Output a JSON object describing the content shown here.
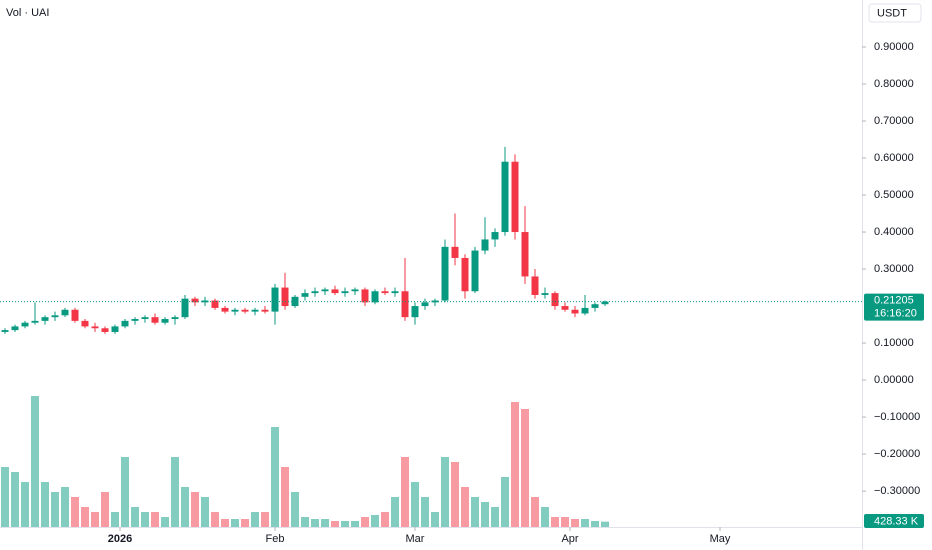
{
  "chart_data": {
    "type": "candlestick",
    "title": "Vol · UAI",
    "currency": "USDT",
    "countdown": "16:16:20",
    "last_volume_label": "428.33 K",
    "up_color": "#089981",
    "down_color": "#f23645",
    "xlim": [
      0,
      172.4
    ],
    "xticks": [
      {
        "value": 24,
        "label": "2026"
      },
      {
        "value": 55,
        "label": "Feb"
      },
      {
        "value": 83,
        "label": "Mar"
      },
      {
        "value": 114,
        "label": "Apr"
      },
      {
        "value": 144,
        "label": "May"
      }
    ],
    "ylim": [
      -0.397,
      1.027
    ],
    "yticks": [
      {
        "value": 0.9,
        "label": "0.90000"
      },
      {
        "value": 0.8,
        "label": "0.80000"
      },
      {
        "value": 0.7,
        "label": "0.70000"
      },
      {
        "value": 0.6,
        "label": "0.60000"
      },
      {
        "value": 0.5,
        "label": "0.50000"
      },
      {
        "value": 0.4,
        "label": "0.40000"
      },
      {
        "value": 0.3,
        "label": "0.30000"
      },
      {
        "value": 0.1,
        "label": "0.10000"
      },
      {
        "value": 0,
        "label": "0.00000"
      },
      {
        "value": -0.1,
        "label": "−0.10000"
      },
      {
        "value": -0.2,
        "label": "−0.20000"
      },
      {
        "value": -0.3,
        "label": "−0.30000"
      }
    ],
    "volume_ylim": [
      0,
      12000
    ],
    "x": [
      1,
      3,
      5,
      7,
      9,
      11,
      13,
      15,
      17,
      19,
      21,
      23,
      25,
      27,
      29,
      31,
      33,
      35,
      37,
      39,
      41,
      43,
      45,
      47,
      49,
      51,
      53,
      55,
      57,
      59,
      61,
      63,
      65,
      67,
      69,
      71,
      73,
      75,
      77,
      79,
      81,
      83,
      85,
      87,
      89,
      91,
      93,
      95,
      97,
      99,
      101,
      103,
      105,
      107,
      109,
      111,
      113,
      115,
      117,
      119,
      121
    ],
    "candles": [
      [
        0.13,
        0.14,
        0.125,
        0.135
      ],
      [
        0.135,
        0.15,
        0.13,
        0.145
      ],
      [
        0.145,
        0.16,
        0.14,
        0.155
      ],
      [
        0.155,
        0.21,
        0.15,
        0.16
      ],
      [
        0.16,
        0.175,
        0.15,
        0.17
      ],
      [
        0.17,
        0.185,
        0.16,
        0.175
      ],
      [
        0.175,
        0.195,
        0.17,
        0.19
      ],
      [
        0.19,
        0.195,
        0.155,
        0.16
      ],
      [
        0.16,
        0.165,
        0.14,
        0.145
      ],
      [
        0.145,
        0.155,
        0.13,
        0.14
      ],
      [
        0.14,
        0.145,
        0.125,
        0.13
      ],
      [
        0.13,
        0.15,
        0.125,
        0.145
      ],
      [
        0.145,
        0.165,
        0.14,
        0.16
      ],
      [
        0.16,
        0.17,
        0.15,
        0.165
      ],
      [
        0.165,
        0.175,
        0.155,
        0.17
      ],
      [
        0.17,
        0.18,
        0.15,
        0.155
      ],
      [
        0.155,
        0.17,
        0.15,
        0.165
      ],
      [
        0.165,
        0.175,
        0.15,
        0.17
      ],
      [
        0.17,
        0.23,
        0.165,
        0.22
      ],
      [
        0.22,
        0.225,
        0.2,
        0.21
      ],
      [
        0.21,
        0.225,
        0.2,
        0.215
      ],
      [
        0.215,
        0.22,
        0.19,
        0.195
      ],
      [
        0.195,
        0.2,
        0.18,
        0.185
      ],
      [
        0.185,
        0.195,
        0.175,
        0.19
      ],
      [
        0.19,
        0.195,
        0.18,
        0.185
      ],
      [
        0.185,
        0.195,
        0.175,
        0.19
      ],
      [
        0.19,
        0.2,
        0.18,
        0.185
      ],
      [
        0.185,
        0.26,
        0.15,
        0.25
      ],
      [
        0.25,
        0.29,
        0.19,
        0.2
      ],
      [
        0.2,
        0.23,
        0.195,
        0.225
      ],
      [
        0.225,
        0.245,
        0.215,
        0.235
      ],
      [
        0.235,
        0.25,
        0.225,
        0.24
      ],
      [
        0.24,
        0.25,
        0.23,
        0.245
      ],
      [
        0.245,
        0.255,
        0.23,
        0.235
      ],
      [
        0.235,
        0.25,
        0.225,
        0.24
      ],
      [
        0.24,
        0.25,
        0.23,
        0.245
      ],
      [
        0.245,
        0.25,
        0.2,
        0.21
      ],
      [
        0.21,
        0.245,
        0.205,
        0.24
      ],
      [
        0.24,
        0.25,
        0.23,
        0.235
      ],
      [
        0.235,
        0.25,
        0.225,
        0.24
      ],
      [
        0.24,
        0.33,
        0.16,
        0.17
      ],
      [
        0.17,
        0.21,
        0.15,
        0.2
      ],
      [
        0.2,
        0.22,
        0.19,
        0.21
      ],
      [
        0.21,
        0.22,
        0.2,
        0.215
      ],
      [
        0.215,
        0.38,
        0.21,
        0.36
      ],
      [
        0.36,
        0.45,
        0.31,
        0.33
      ],
      [
        0.33,
        0.34,
        0.22,
        0.24
      ],
      [
        0.24,
        0.36,
        0.235,
        0.35
      ],
      [
        0.35,
        0.44,
        0.34,
        0.38
      ],
      [
        0.38,
        0.41,
        0.36,
        0.4
      ],
      [
        0.4,
        0.63,
        0.39,
        0.59
      ],
      [
        0.59,
        0.61,
        0.38,
        0.4
      ],
      [
        0.4,
        0.47,
        0.26,
        0.28
      ],
      [
        0.28,
        0.3,
        0.22,
        0.23
      ],
      [
        0.23,
        0.25,
        0.22,
        0.235
      ],
      [
        0.235,
        0.24,
        0.19,
        0.2
      ],
      [
        0.2,
        0.21,
        0.185,
        0.19
      ],
      [
        0.19,
        0.2,
        0.17,
        0.18
      ],
      [
        0.18,
        0.23,
        0.175,
        0.195
      ],
      [
        0.195,
        0.21,
        0.185,
        0.205
      ],
      [
        0.205,
        0.215,
        0.2,
        0.21205
      ]
    ],
    "volume": [
      4800,
      4400,
      3600,
      10480,
      3600,
      2800,
      3200,
      2400,
      1600,
      1200,
      2800,
      1200,
      5600,
      1600,
      1200,
      1200,
      800,
      5600,
      3200,
      2800,
      2400,
      1200,
      640,
      640,
      640,
      1200,
      1200,
      8000,
      4800,
      2800,
      800,
      640,
      640,
      480,
      480,
      480,
      800,
      960,
      1200,
      2400,
      5600,
      3600,
      2400,
      1200,
      5600,
      5200,
      3200,
      2400,
      2000,
      1600,
      4000,
      10000,
      9440,
      2400,
      1600,
      800,
      800,
      640,
      640,
      480,
      428.33
    ]
  }
}
